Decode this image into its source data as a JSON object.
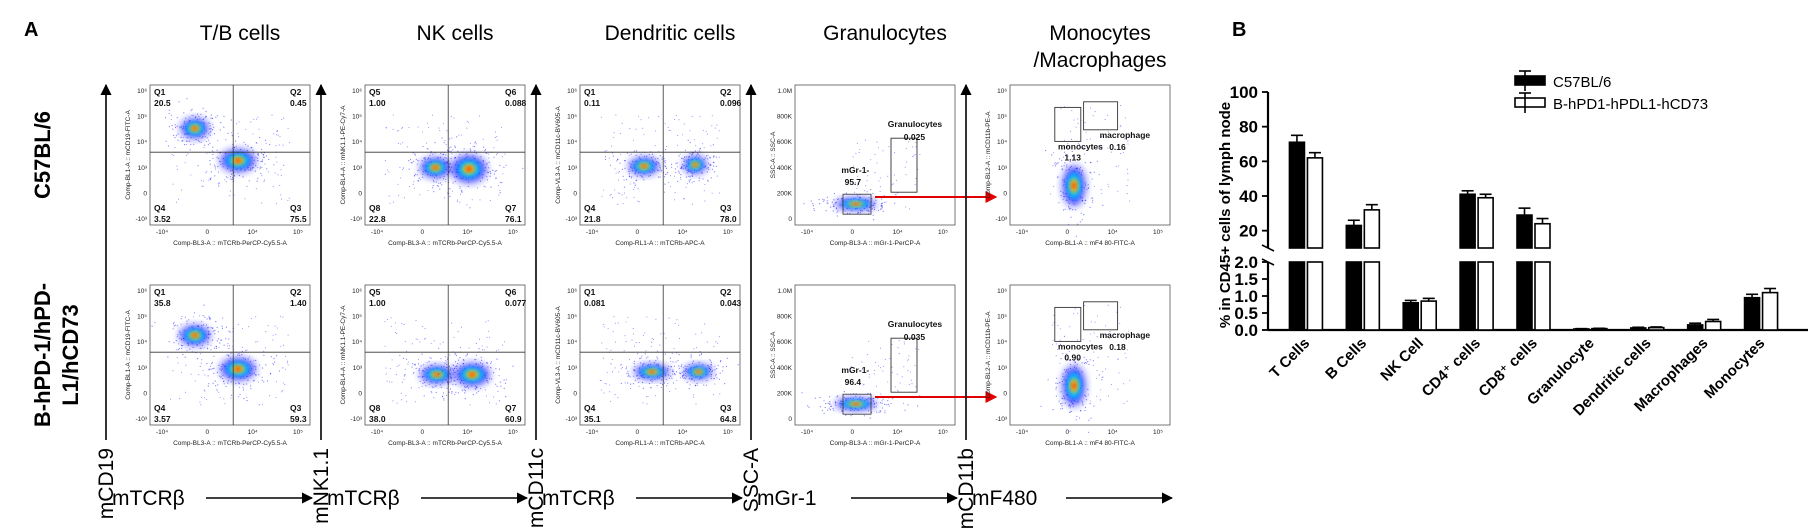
{
  "panel_a": {
    "label": "A",
    "columns": [
      {
        "title": [
          "T/B cells"
        ],
        "x_label": "mTCRβ",
        "y_label": "mCD19"
      },
      {
        "title": [
          "NK cells"
        ],
        "x_label": "mTCRβ",
        "y_label": "mNK1.1"
      },
      {
        "title": [
          "Dendritic cells"
        ],
        "x_label": "mTCRβ",
        "y_label": "mCD11c"
      },
      {
        "title": [
          "Granulocytes"
        ],
        "x_label": "mGr-1",
        "y_label": "SSC-A"
      },
      {
        "title": [
          "Monocytes",
          "/Macrophages"
        ],
        "x_label": "mF480",
        "y_label": "mCD11b"
      }
    ],
    "rows": [
      "C57BL/6",
      "B-hPD-1/hPD-L1/hCD73"
    ],
    "row_label_lines": [
      [
        "C57BL/6"
      ],
      [
        "B-hPD-1/hPD-",
        "L1/hCD73"
      ]
    ],
    "plots": [
      [
        {
          "type": "quad",
          "x_axis": "Comp-BL3-A :: mTCRb-PerCP-Cy5.5-A",
          "y_axis": "Comp-BL1-A :: mCD19-FITC-A",
          "quadrants": [
            {
              "name": "Q1",
              "value": "20.5"
            },
            {
              "name": "Q2",
              "value": "0.45"
            },
            {
              "name": "Q4",
              "value": "3.52"
            },
            {
              "name": "Q3",
              "value": "75.5"
            }
          ]
        },
        {
          "type": "quad",
          "x_axis": "Comp-BL3-A :: mTCRb-PerCP-Cy5.5-A",
          "y_axis": "Comp-BL4-A :: mNK1.1-PE-Cy7-A",
          "quadrants": [
            {
              "name": "Q5",
              "value": "1.00"
            },
            {
              "name": "Q6",
              "value": "0.088"
            },
            {
              "name": "Q8",
              "value": "22.8"
            },
            {
              "name": "Q7",
              "value": "76.1"
            }
          ]
        },
        {
          "type": "quad",
          "x_axis": "Comp-RL1-A :: mTCRb-APC-A",
          "y_axis": "Comp-VL3-A :: mCD11c-BV605-A",
          "quadrants": [
            {
              "name": "Q1",
              "value": "0.11"
            },
            {
              "name": "Q2",
              "value": "0.096"
            },
            {
              "name": "Q4",
              "value": "21.8"
            },
            {
              "name": "Q3",
              "value": "78.0"
            }
          ]
        },
        {
          "type": "gran",
          "x_axis": "Comp-BL3-A :: mGr-1-PerCP-A",
          "y_axis": "SSC-A :: SSC-A",
          "gates": [
            {
              "name": "Granulocytes",
              "value": "0.025"
            },
            {
              "name": "mGr-1-",
              "value": "95.7"
            }
          ]
        },
        {
          "type": "mono",
          "x_axis": "Comp-BL1-A :: mF4 80-FITC-A",
          "y_axis": "Comp-BL2-A :: mCD11b-PE-A",
          "gates": [
            {
              "name": "monocytes",
              "value": "1.13"
            },
            {
              "name": "macrophage",
              "value": "0.16"
            }
          ]
        }
      ],
      [
        {
          "type": "quad",
          "x_axis": "Comp-BL3-A :: mTCRb-PerCP-Cy5.5-A",
          "y_axis": "Comp-BL1-A :: mCD19-FITC-A",
          "quadrants": [
            {
              "name": "Q1",
              "value": "35.8"
            },
            {
              "name": "Q2",
              "value": "1.40"
            },
            {
              "name": "Q4",
              "value": "3.57"
            },
            {
              "name": "Q3",
              "value": "59.3"
            }
          ]
        },
        {
          "type": "quad",
          "x_axis": "Comp-BL3-A :: mTCRb-PerCP-Cy5.5-A",
          "y_axis": "Comp-BL4-A :: mNK1.1-PE-Cy7-A",
          "quadrants": [
            {
              "name": "Q5",
              "value": "1.00"
            },
            {
              "name": "Q6",
              "value": "0.077"
            },
            {
              "name": "Q8",
              "value": "38.0"
            },
            {
              "name": "Q7",
              "value": "60.9"
            }
          ]
        },
        {
          "type": "quad",
          "x_axis": "Comp-RL1-A :: mTCRb-APC-A",
          "y_axis": "Comp-VL3-A :: mCD11c-BV605-A",
          "quadrants": [
            {
              "name": "Q1",
              "value": "0.081"
            },
            {
              "name": "Q2",
              "value": "0.043"
            },
            {
              "name": "Q4",
              "value": "35.1"
            },
            {
              "name": "Q3",
              "value": "64.8"
            }
          ]
        },
        {
          "type": "gran",
          "x_axis": "Comp-BL3-A :: mGr-1-PerCP-A",
          "y_axis": "SSC-A :: SSC-A",
          "gates": [
            {
              "name": "Granulocytes",
              "value": "0.035"
            },
            {
              "name": "mGr-1-",
              "value": "96.4"
            }
          ]
        },
        {
          "type": "mono",
          "x_axis": "Comp-BL1-A :: mF4 80-FITC-A",
          "y_axis": "Comp-BL2-A :: mCD11b-PE-A",
          "gates": [
            {
              "name": "monocytes",
              "value": "0.90"
            },
            {
              "name": "macrophage",
              "value": "0.18"
            }
          ]
        }
      ]
    ],
    "log_ticks_x": [
      "-10⁴",
      "0",
      "10⁴",
      "10⁵"
    ],
    "log_ticks_y": [
      "-10³",
      "0",
      "10³",
      "10⁴",
      "10⁵",
      "10⁶"
    ],
    "ssc_ticks_y": [
      "0",
      "200K",
      "400K",
      "600K",
      "800K",
      "1.0M"
    ],
    "colors": {
      "low": "#1a1aff",
      "mid": "#00c0ff",
      "hot": "#ff2a00",
      "arrow": "#e00000"
    }
  },
  "chart_data": {
    "panel_label": "B",
    "type": "bar",
    "ylabel": "% in CD45+ cells of lymph node",
    "categories": [
      "T Cells",
      "B Cells",
      "NK Cell",
      "CD4⁺ cells",
      "CD8⁺ cells",
      "Granulocyte",
      "Dendritic cells",
      "Macrophages",
      "Monocytes"
    ],
    "series": [
      {
        "name": "C57BL/6",
        "values": [
          71,
          23,
          0.8,
          41,
          29,
          0.03,
          0.06,
          0.15,
          0.95
        ],
        "errors": [
          4,
          3,
          0.07,
          2,
          4,
          0.01,
          0.02,
          0.05,
          0.1
        ]
      },
      {
        "name": "B-hPD1-hPDL1-hCD73",
        "values": [
          62,
          32,
          0.85,
          39,
          24,
          0.04,
          0.07,
          0.25,
          1.1
        ],
        "errors": [
          3,
          3,
          0.08,
          2,
          3,
          0.01,
          0.02,
          0.06,
          0.12
        ]
      }
    ],
    "axis_segments": {
      "lower": {
        "ylim": [
          0,
          2.0
        ],
        "ticks": [
          "0.0",
          "0.5",
          "1.0",
          "1.5",
          "2.0"
        ]
      },
      "upper": {
        "ylim": [
          10,
          100
        ],
        "ticks": [
          "20",
          "40",
          "60",
          "80",
          "100"
        ]
      }
    },
    "legend_position": "top-right",
    "grid": false
  }
}
